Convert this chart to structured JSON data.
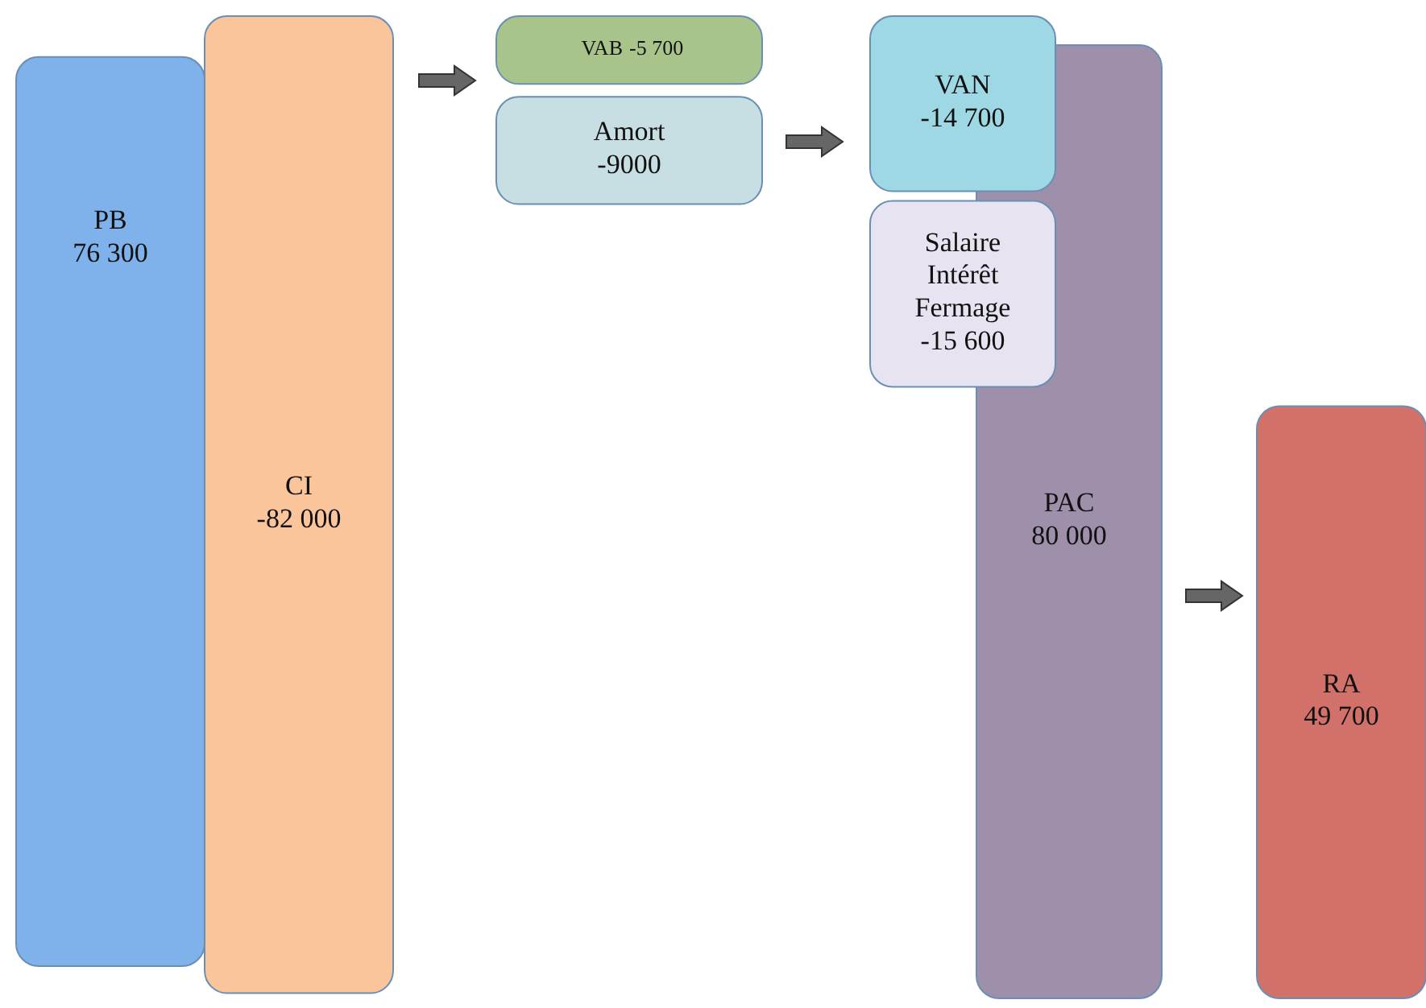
{
  "chart_data": {
    "type": "other",
    "categories": [
      "PB",
      "CI",
      "VAB",
      "Amort",
      "VAN",
      "Salaire\nIntérêt\nFermage",
      "PAC",
      "RA"
    ],
    "values": [
      76300,
      -82000,
      -5700,
      -9000,
      -14700,
      -15600,
      80000,
      49700
    ],
    "value_labels": [
      "76 300",
      "-82 000",
      "-5 700",
      "-9000",
      "-14 700",
      "-15 600",
      "80 000",
      "49 700"
    ],
    "colors": [
      "#7fb2ea",
      "#fbc59c",
      "#a9c48a",
      "#c7dfe2",
      "#9ed8e4",
      "#e8e3f0",
      "#9e8fab",
      "#d2706a"
    ]
  }
}
